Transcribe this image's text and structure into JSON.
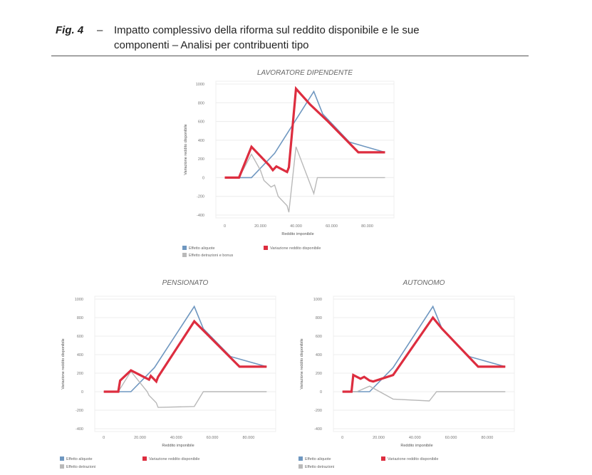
{
  "caption": {
    "label": "Fig. 4",
    "dash": "–",
    "line1": "Impatto complessivo della riforma sul reddito disponibile e le sue",
    "line2": "componenti – Analisi per contribuenti tipo"
  },
  "colors": {
    "blue": "#6f97c0",
    "red": "#dd2d3f",
    "gray": "#b9b9b9",
    "grid": "#ececec",
    "text": "#666666"
  },
  "chart_data": [
    {
      "type": "line",
      "title": "LAVORATORE DIPENDENTE",
      "xlabel": "Reddito imponibile",
      "ylabel": "Variazione reddito disponibile",
      "xlim": [
        -5000,
        95000
      ],
      "ylim": [
        -400,
        1000
      ],
      "xticks": [
        0,
        20000,
        40000,
        60000,
        80000
      ],
      "xtick_labels": [
        "0",
        "20.000",
        "40.000",
        "60.000",
        "80.000"
      ],
      "yticks": [
        -400,
        -200,
        0,
        200,
        400,
        600,
        800,
        1000
      ],
      "ytick_labels": [
        "-400",
        "-200",
        "0",
        "200",
        "400",
        "600",
        "800",
        "1000"
      ],
      "legend": [
        {
          "name": "Effetto aliquote",
          "color": "#6f97c0"
        },
        {
          "name": "Variazione reddito disponibile",
          "color": "#dd2d3f"
        },
        {
          "name": "Effetto detrazioni e bonus",
          "color": "#b9b9b9"
        }
      ],
      "series": [
        {
          "name": "Effetto aliquote",
          "color": "#6f97c0",
          "width": 1.6,
          "x": [
            0,
            15000,
            28000,
            42000,
            50000,
            55000,
            70000,
            90000
          ],
          "y": [
            0,
            0,
            260,
            680,
            920,
            680,
            380,
            270
          ]
        },
        {
          "name": "Effetto detrazioni e bonus",
          "color": "#b9b9b9",
          "width": 1.4,
          "x": [
            0,
            8000,
            15000,
            20000,
            22000,
            26000,
            28000,
            30000,
            35000,
            36000,
            40000,
            50000,
            52000,
            90000
          ],
          "y": [
            0,
            0,
            250,
            80,
            -30,
            -100,
            -80,
            -200,
            -300,
            -370,
            330,
            -170,
            0,
            0
          ]
        },
        {
          "name": "Variazione reddito disponibile",
          "color": "#dd2d3f",
          "width": 3.2,
          "x": [
            0,
            8000,
            15000,
            25000,
            27000,
            29000,
            35000,
            36000,
            40000,
            48000,
            58000,
            75000,
            90000
          ],
          "y": [
            0,
            0,
            330,
            130,
            80,
            120,
            60,
            110,
            950,
            780,
            600,
            270,
            270
          ]
        }
      ]
    },
    {
      "type": "line",
      "title": "PENSIONATO",
      "xlabel": "Reddito imponibile",
      "ylabel": "Variazione reddito disponibile",
      "xlim": [
        -5000,
        95000
      ],
      "ylim": [
        -400,
        1000
      ],
      "xticks": [
        0,
        20000,
        40000,
        60000,
        80000
      ],
      "xtick_labels": [
        "0",
        "20.000",
        "40.000",
        "60.000",
        "80.000"
      ],
      "yticks": [
        -400,
        -200,
        0,
        200,
        400,
        600,
        800,
        1000
      ],
      "ytick_labels": [
        "-400",
        "-200",
        "0",
        "200",
        "400",
        "600",
        "800",
        "1000"
      ],
      "legend": [
        {
          "name": "Effetto aliquote",
          "color": "#6f97c0"
        },
        {
          "name": "Variazione reddito disponibile",
          "color": "#dd2d3f"
        },
        {
          "name": "Effetto detrazioni",
          "color": "#b9b9b9"
        }
      ],
      "series": [
        {
          "name": "Effetto aliquote",
          "color": "#6f97c0",
          "width": 1.6,
          "x": [
            0,
            15000,
            28000,
            42000,
            50000,
            55000,
            70000,
            90000
          ],
          "y": [
            0,
            0,
            260,
            680,
            920,
            680,
            380,
            270
          ]
        },
        {
          "name": "Effetto detrazioni",
          "color": "#b9b9b9",
          "width": 1.4,
          "x": [
            0,
            8000,
            15000,
            24000,
            25000,
            27000,
            29000,
            30000,
            50000,
            55000,
            90000
          ],
          "y": [
            0,
            0,
            220,
            0,
            -40,
            -80,
            -120,
            -170,
            -160,
            0,
            0
          ]
        },
        {
          "name": "Variazione reddito disponibile",
          "color": "#dd2d3f",
          "width": 3.2,
          "x": [
            0,
            8000,
            9000,
            15000,
            25000,
            26000,
            29000,
            30000,
            50000,
            75000,
            90000
          ],
          "y": [
            0,
            0,
            120,
            230,
            130,
            170,
            110,
            160,
            760,
            270,
            270
          ]
        }
      ]
    },
    {
      "type": "line",
      "title": "AUTONOMO",
      "xlabel": "Reddito imponibile",
      "ylabel": "Variazione reddito disponibile",
      "xlim": [
        -5000,
        95000
      ],
      "ylim": [
        -400,
        1000
      ],
      "xticks": [
        0,
        20000,
        40000,
        60000,
        80000
      ],
      "xtick_labels": [
        "0",
        "20.000",
        "40.000",
        "60.000",
        "80.000"
      ],
      "yticks": [
        -400,
        -200,
        0,
        200,
        400,
        600,
        800,
        1000
      ],
      "ytick_labels": [
        "-400",
        "-200",
        "0",
        "200",
        "400",
        "600",
        "800",
        "1000"
      ],
      "legend": [
        {
          "name": "Effetto aliquote",
          "color": "#6f97c0"
        },
        {
          "name": "Variazione reddito disponibile",
          "color": "#dd2d3f"
        },
        {
          "name": "Effetto detrazioni",
          "color": "#b9b9b9"
        }
      ],
      "series": [
        {
          "name": "Effetto aliquote",
          "color": "#6f97c0",
          "width": 1.6,
          "x": [
            0,
            15000,
            28000,
            42000,
            50000,
            55000,
            70000,
            90000
          ],
          "y": [
            0,
            0,
            260,
            680,
            920,
            680,
            380,
            270
          ]
        },
        {
          "name": "Effetto detrazioni",
          "color": "#b9b9b9",
          "width": 1.4,
          "x": [
            0,
            8000,
            15000,
            28000,
            48000,
            52000,
            90000
          ],
          "y": [
            0,
            0,
            60,
            -80,
            -100,
            0,
            0
          ]
        },
        {
          "name": "Variazione reddito disponibile",
          "color": "#dd2d3f",
          "width": 3.2,
          "x": [
            0,
            5000,
            6000,
            10000,
            12000,
            15000,
            17000,
            28000,
            50000,
            55000,
            75000,
            90000
          ],
          "y": [
            0,
            0,
            180,
            140,
            160,
            120,
            110,
            180,
            800,
            680,
            270,
            270
          ]
        }
      ]
    }
  ]
}
